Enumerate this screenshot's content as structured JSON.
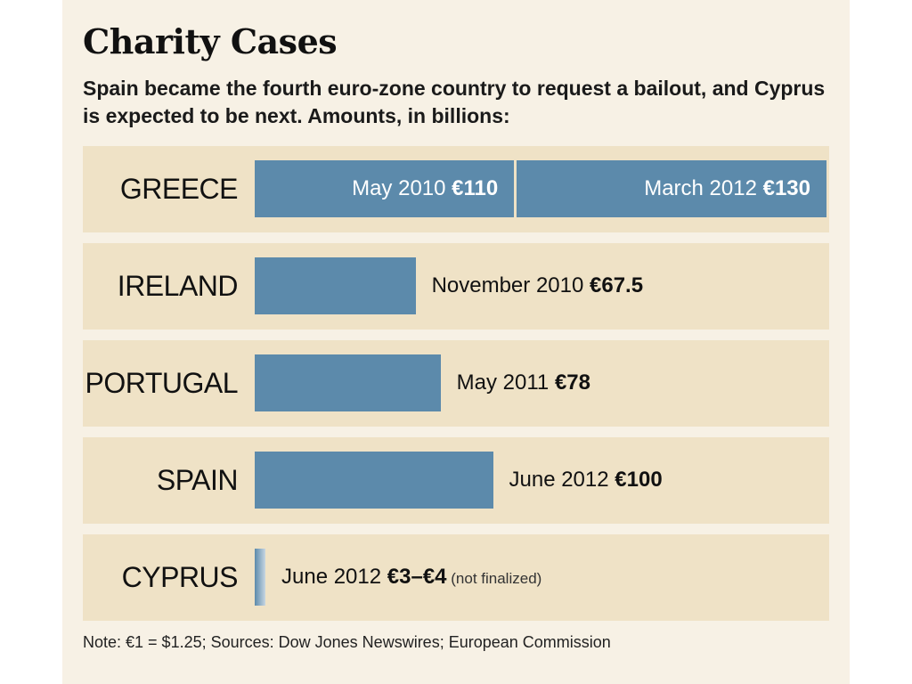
{
  "chart_data": {
    "type": "bar",
    "orientation": "horizontal",
    "title": "Charity Cases",
    "subtitle": "Spain became the fourth euro-zone country to request a bailout, and Cyprus is expected to be next. Amounts, in billions:",
    "unit": "€ billions",
    "xlim": [
      0,
      240
    ],
    "rows": [
      {
        "country": "GREECE",
        "segments": [
          {
            "date": "May 2010",
            "amount_label": "€110",
            "value": 110
          },
          {
            "date": "March 2012",
            "amount_label": "€130",
            "value": 130
          }
        ]
      },
      {
        "country": "IRELAND",
        "segments": [
          {
            "date": "November 2010",
            "amount_label": "€67.5",
            "value": 67.5
          }
        ]
      },
      {
        "country": "PORTUGAL",
        "segments": [
          {
            "date": "May 2011",
            "amount_label": "€78",
            "value": 78
          }
        ]
      },
      {
        "country": "SPAIN",
        "segments": [
          {
            "date": "June 2012",
            "amount_label": "€100",
            "value": 100
          }
        ]
      },
      {
        "country": "CYPRUS",
        "segments": [
          {
            "date": "June 2012",
            "amount_label": "€3–€4",
            "value": 4,
            "note": "(not finalized)"
          }
        ]
      }
    ],
    "colors": {
      "bar": "#5c8aab",
      "row_background": "#efe2c6",
      "panel_background": "#f7f1e5"
    },
    "footnote": "Note: €1 = $1.25; Sources: Dow Jones Newswires; European Commission"
  }
}
